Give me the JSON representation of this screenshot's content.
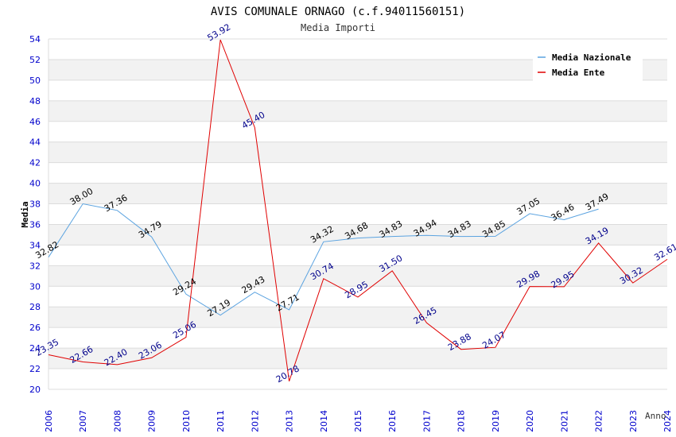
{
  "chart_data": {
    "type": "line",
    "title": "AVIS COMUNALE ORNAGO (c.f.94011560151)",
    "subtitle": "Media Importi",
    "xlabel": "Anno",
    "ylabel": "Media",
    "ylim": [
      20,
      54
    ],
    "yticks": [
      20,
      22,
      24,
      26,
      28,
      30,
      32,
      34,
      36,
      38,
      40,
      42,
      44,
      46,
      48,
      50,
      52,
      54
    ],
    "x": [
      "2006",
      "2007",
      "2008",
      "2009",
      "2010",
      "2011",
      "2012",
      "2013",
      "2014",
      "2015",
      "2016",
      "2017",
      "2018",
      "2019",
      "2020",
      "2021",
      "2022",
      "2023",
      "2024"
    ],
    "grid": "horizontal bands",
    "legend_position": "top-right",
    "series": [
      {
        "name": "Media Nazionale",
        "color": "#5ba3e0",
        "label_color": "#000000",
        "values": [
          32.82,
          38.0,
          37.36,
          34.79,
          29.24,
          27.19,
          29.43,
          27.71,
          34.32,
          34.68,
          34.83,
          34.94,
          34.83,
          34.85,
          37.05,
          36.46,
          37.49,
          null,
          null
        ],
        "labels": [
          "32.82",
          "38.00",
          "37.36",
          "34.79",
          "29.24",
          "27.19",
          "29.43",
          "27.71",
          "34.32",
          "34.68",
          "34.83",
          "34.94",
          "34.83",
          "34.85",
          "37.05",
          "36.46",
          "37.49",
          null,
          null
        ]
      },
      {
        "name": "Media Ente",
        "color": "#e00000",
        "label_color": "#00008b",
        "values": [
          23.35,
          22.66,
          22.4,
          23.06,
          25.06,
          53.92,
          45.4,
          20.78,
          30.74,
          28.95,
          31.5,
          26.45,
          23.88,
          24.07,
          29.98,
          29.95,
          34.19,
          30.32,
          32.61
        ],
        "labels": [
          "23.35",
          "22.66",
          "22.40",
          "23.06",
          "25.06",
          "53.92",
          "45.40",
          "20.78",
          "30.74",
          "28.95",
          "31.50",
          "26.45",
          "23.88",
          "24.07",
          "29.98",
          "29.95",
          "34.19",
          "30.32",
          "32.61"
        ]
      }
    ]
  }
}
